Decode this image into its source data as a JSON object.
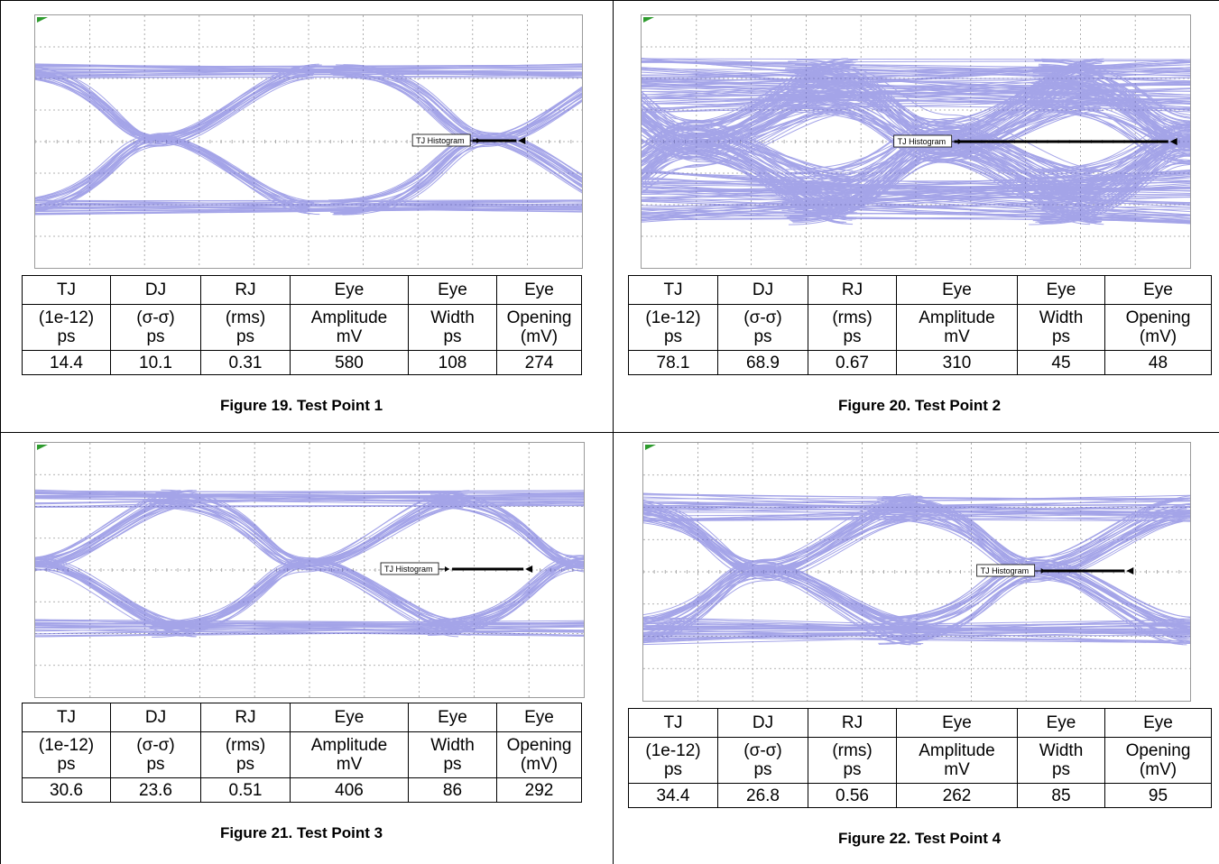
{
  "table_headers": {
    "row1": [
      "TJ",
      "DJ",
      "RJ",
      "Eye",
      "Eye",
      "Eye"
    ],
    "row2a": [
      "(1e-12)",
      "(σ-σ)",
      "(rms)",
      "Amplitude",
      "Width",
      "Opening"
    ],
    "row2b": [
      "ps",
      "ps",
      "ps",
      "mV",
      "ps",
      "(mV)"
    ]
  },
  "figures": [
    {
      "caption": "Figure 19. Test Point 1",
      "marker": "TJ Histogram",
      "values": [
        "14.4",
        "10.1",
        "0.31",
        "580",
        "108",
        "274"
      ],
      "eye_style": "clean"
    },
    {
      "caption": "Figure 20. Test Point 2",
      "marker": "TJ Histogram",
      "values": [
        "78.1",
        "68.9",
        "0.67",
        "310",
        "45",
        "48"
      ],
      "eye_style": "noisy"
    },
    {
      "caption": "Figure 21. Test Point 3",
      "marker": "TJ Histogram",
      "values": [
        "30.6",
        "23.6",
        "0.51",
        "406",
        "86",
        "292"
      ],
      "eye_style": "clean"
    },
    {
      "caption": "Figure 22. Test Point 4",
      "marker": "TJ Histogram",
      "values": [
        "34.4",
        "26.8",
        "0.56",
        "262",
        "85",
        "95"
      ],
      "eye_style": "clean"
    }
  ],
  "colors": {
    "trace": "#5b5bd6",
    "grid": "#9a9a9a",
    "histogram": "#000000",
    "corner_marker": "#2e9b2e"
  }
}
